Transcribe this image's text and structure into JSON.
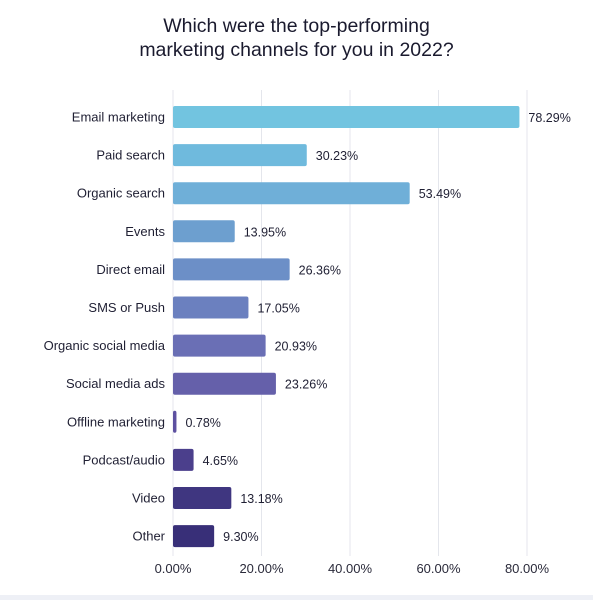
{
  "chart_data": {
    "type": "bar",
    "orientation": "horizontal",
    "title_lines": [
      "Which were the top-performing",
      "marketing channels for you in 2022?"
    ],
    "categories": [
      "Email marketing",
      "Paid search",
      "Organic search",
      "Events",
      "Direct email",
      "SMS or Push",
      "Organic social media",
      "Social media ads",
      "Offline marketing",
      "Podcast/audio",
      "Video",
      "Other"
    ],
    "values": [
      78.29,
      30.23,
      53.49,
      13.95,
      26.36,
      17.05,
      20.93,
      23.26,
      0.78,
      4.65,
      13.18,
      9.3
    ],
    "value_labels": [
      "78.29%",
      "30.23%",
      "53.49%",
      "13.95%",
      "26.36%",
      "17.05%",
      "20.93%",
      "23.26%",
      "0.78%",
      "4.65%",
      "13.18%",
      "9.30%"
    ],
    "xlim": [
      0,
      80
    ],
    "xticks": [
      0,
      20,
      40,
      60,
      80
    ],
    "xtick_labels": [
      "0.00%",
      "20.00%",
      "40.00%",
      "60.00%",
      "80.00%"
    ],
    "grid": "vertical",
    "legend": "none",
    "bar_colors": [
      "#72c4e0",
      "#6fbadd",
      "#6fafd8",
      "#6d9fcf",
      "#6c8fc7",
      "#6b80bf",
      "#6a6fb5",
      "#6560aa",
      "#5d50a0",
      "#4b3f8c",
      "#3f3680",
      "#382f78"
    ]
  }
}
